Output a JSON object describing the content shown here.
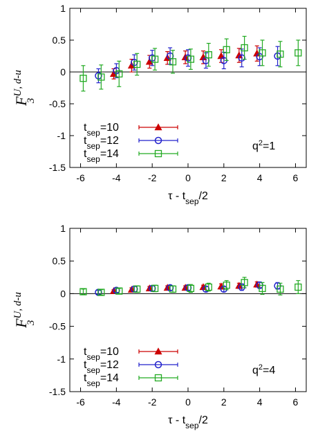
{
  "chart_data": [
    {
      "type": "scatter",
      "ylabel_main": "F",
      "ylabel_sup": "U, d-u",
      "ylabel_sub": "3",
      "xlabel_main": "τ - t",
      "xlabel_sub": "sep",
      "xlabel_tail": "/2",
      "xlim": [
        -6.6,
        6.6
      ],
      "ylim": [
        -1.5,
        1.0
      ],
      "xticks": [
        "-6",
        "-4",
        "-2",
        "0",
        "2",
        "4",
        "6"
      ],
      "xtick_values": [
        -6,
        -4,
        -2,
        0,
        2,
        4,
        6
      ],
      "yticks": [
        "1",
        "0.5",
        "0",
        "-0.5",
        "-1",
        "-1.5"
      ],
      "ytick_values": [
        1,
        0.5,
        0,
        -0.5,
        -1,
        -1.5
      ],
      "annotation": {
        "main": "q",
        "sup": "2",
        "tail": "=1"
      },
      "legend_placement": "bottom-left",
      "series": [
        {
          "name": "t_sep=10",
          "label_main": "t",
          "label_sub": "sep",
          "label_tail": "=10",
          "color": "#cc0000",
          "marker": "triangle",
          "x": [
            -4,
            -3,
            -2,
            -1,
            0,
            1,
            2,
            3,
            4
          ],
          "y": [
            -0.03,
            0.1,
            0.16,
            0.22,
            0.23,
            0.23,
            0.25,
            0.26,
            0.29
          ],
          "err": [
            0.08,
            0.1,
            0.1,
            0.1,
            0.1,
            0.1,
            0.1,
            0.11,
            0.12
          ]
        },
        {
          "name": "t_sep=12",
          "label_main": "t",
          "label_sub": "sep",
          "label_tail": "=12",
          "color": "#2222cc",
          "marker": "circle",
          "x": [
            -5,
            -4,
            -3,
            -2,
            -1,
            0,
            1,
            2,
            3,
            4,
            5
          ],
          "y": [
            -0.06,
            0.02,
            0.15,
            0.22,
            0.25,
            0.22,
            0.18,
            0.18,
            0.22,
            0.24,
            0.25
          ],
          "err": [
            0.11,
            0.11,
            0.12,
            0.12,
            0.13,
            0.13,
            0.12,
            0.13,
            0.14,
            0.14,
            0.15
          ]
        },
        {
          "name": "t_sep=14",
          "label_main": "t",
          "label_sub": "sep",
          "label_tail": "=14",
          "color": "#22aa22",
          "marker": "square",
          "x": [
            -6,
            -5,
            -4,
            -3,
            -2,
            -1,
            0,
            1,
            2,
            3,
            4,
            5,
            6
          ],
          "y": [
            -0.1,
            -0.08,
            -0.03,
            0.12,
            0.2,
            0.16,
            0.2,
            0.27,
            0.35,
            0.38,
            0.3,
            0.28,
            0.3
          ],
          "err": [
            0.2,
            0.19,
            0.2,
            0.17,
            0.17,
            0.18,
            0.16,
            0.18,
            0.17,
            0.18,
            0.2,
            0.2,
            0.2
          ]
        }
      ]
    },
    {
      "type": "scatter",
      "ylabel_main": "F",
      "ylabel_sup": "U, d-u",
      "ylabel_sub": "3",
      "xlabel_main": "τ - t",
      "xlabel_sub": "sep",
      "xlabel_tail": "/2",
      "xlim": [
        -6.6,
        6.6
      ],
      "ylim": [
        -1.5,
        1.0
      ],
      "xticks": [
        "-6",
        "-4",
        "-2",
        "0",
        "2",
        "4",
        "6"
      ],
      "xtick_values": [
        -6,
        -4,
        -2,
        0,
        2,
        4,
        6
      ],
      "yticks": [
        "1",
        "0.5",
        "0",
        "-0.5",
        "-1",
        "-1.5"
      ],
      "ytick_values": [
        1,
        0.5,
        0,
        -0.5,
        -1,
        -1.5
      ],
      "annotation": {
        "main": "q",
        "sup": "2",
        "tail": "=4"
      },
      "legend_placement": "bottom-left",
      "series": [
        {
          "name": "t_sep=10",
          "label_main": "t",
          "label_sub": "sep",
          "label_tail": "=10",
          "color": "#cc0000",
          "marker": "triangle",
          "x": [
            -4,
            -3,
            -2,
            -1,
            0,
            1,
            2,
            3,
            4
          ],
          "y": [
            0.04,
            0.06,
            0.08,
            0.09,
            0.09,
            0.1,
            0.11,
            0.12,
            0.14
          ],
          "err": [
            0.02,
            0.03,
            0.03,
            0.03,
            0.03,
            0.03,
            0.04,
            0.04,
            0.04
          ]
        },
        {
          "name": "t_sep=12",
          "label_main": "t",
          "label_sub": "sep",
          "label_tail": "=12",
          "color": "#2222cc",
          "marker": "circle",
          "x": [
            -5,
            -4,
            -3,
            -2,
            -1,
            0,
            1,
            2,
            3,
            4,
            5
          ],
          "y": [
            0.02,
            0.05,
            0.07,
            0.08,
            0.09,
            0.09,
            0.07,
            0.07,
            0.1,
            0.13,
            0.12
          ],
          "err": [
            0.03,
            0.03,
            0.04,
            0.04,
            0.04,
            0.04,
            0.04,
            0.04,
            0.05,
            0.05,
            0.05
          ]
        },
        {
          "name": "t_sep=14",
          "label_main": "t",
          "label_sub": "sep",
          "label_tail": "=14",
          "color": "#22aa22",
          "marker": "square",
          "x": [
            -6,
            -5,
            -4,
            -3,
            -2,
            -1,
            0,
            1,
            2,
            3,
            4,
            5,
            6
          ],
          "y": [
            0.03,
            0.02,
            0.04,
            0.07,
            0.08,
            0.07,
            0.08,
            0.1,
            0.13,
            0.17,
            0.08,
            0.07,
            0.1
          ],
          "err": [
            0.04,
            0.04,
            0.04,
            0.05,
            0.05,
            0.05,
            0.06,
            0.06,
            0.07,
            0.08,
            0.09,
            0.09,
            0.1
          ]
        }
      ]
    }
  ]
}
